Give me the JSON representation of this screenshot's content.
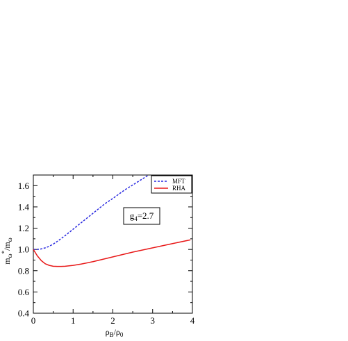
{
  "chart_data": {
    "type": "line",
    "xlabel": "ρB/ρ0",
    "ylabel": "mω*/mω",
    "xlim": [
      0,
      4
    ],
    "ylim": [
      0.4,
      1.7
    ],
    "xticks": [
      "0",
      "1",
      "2",
      "3",
      "4"
    ],
    "yticks": [
      "0.4",
      "0.6",
      "0.8",
      "1.0",
      "1.2",
      "1.4",
      "1.6"
    ],
    "annotation": "g4=2.7",
    "legend_position": "top-right",
    "series": [
      {
        "name": "MFT",
        "color": "#2a2ae0",
        "style": "dashed",
        "x": [
          0,
          0.1,
          0.2,
          0.3,
          0.4,
          0.5,
          0.6,
          0.8,
          1.0,
          1.2,
          1.5,
          1.8,
          2.0,
          2.3,
          2.6,
          2.9
        ],
        "values": [
          1.0,
          1.0,
          1.005,
          1.015,
          1.03,
          1.05,
          1.075,
          1.13,
          1.19,
          1.25,
          1.34,
          1.43,
          1.48,
          1.56,
          1.63,
          1.7
        ]
      },
      {
        "name": "RHA",
        "color": "#e81818",
        "style": "solid",
        "x": [
          0,
          0.1,
          0.2,
          0.3,
          0.4,
          0.5,
          0.6,
          0.7,
          0.8,
          1.0,
          1.2,
          1.5,
          2.0,
          2.5,
          3.0,
          3.5,
          3.95
        ],
        "values": [
          1.0,
          0.94,
          0.895,
          0.865,
          0.85,
          0.842,
          0.84,
          0.84,
          0.842,
          0.85,
          0.862,
          0.885,
          0.93,
          0.975,
          1.015,
          1.055,
          1.09
        ]
      }
    ]
  }
}
